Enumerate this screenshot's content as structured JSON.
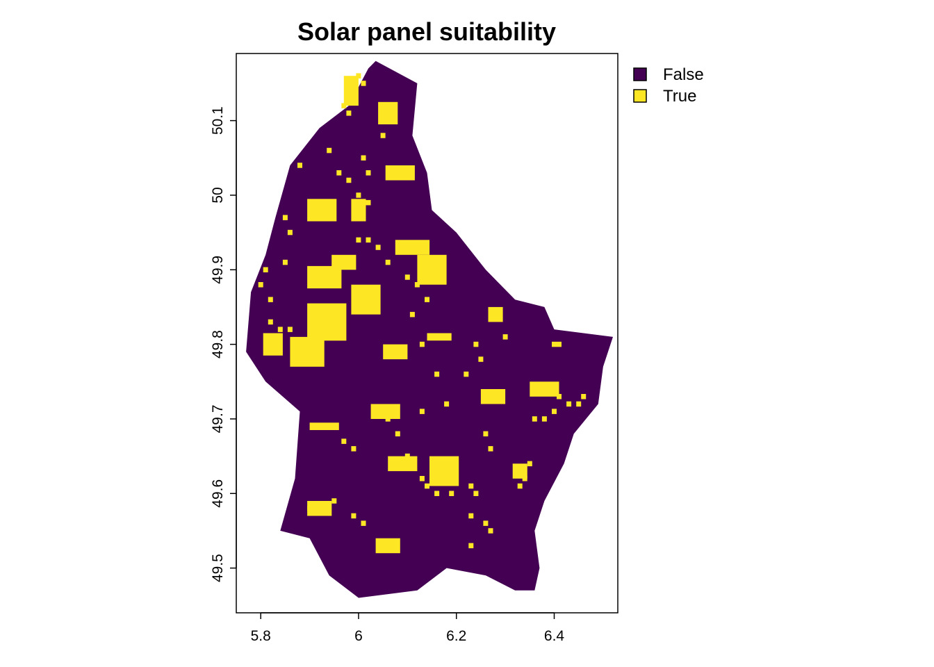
{
  "chart_data": {
    "type": "raster_map",
    "title": "Solar panel suitability",
    "xlabel": "",
    "ylabel": "",
    "xlim": [
      5.75,
      6.53
    ],
    "ylim": [
      49.44,
      50.19
    ],
    "x_ticks": [
      {
        "value": 5.8,
        "label": "5.8"
      },
      {
        "value": 6.0,
        "label": "6"
      },
      {
        "value": 6.2,
        "label": "6.2"
      },
      {
        "value": 6.4,
        "label": "6.4"
      }
    ],
    "y_ticks": [
      {
        "value": 49.5,
        "label": "49.5"
      },
      {
        "value": 49.6,
        "label": "49.6"
      },
      {
        "value": 49.7,
        "label": "49.7"
      },
      {
        "value": 49.8,
        "label": "49.8"
      },
      {
        "value": 49.9,
        "label": "49.9"
      },
      {
        "value": 50.0,
        "label": "50"
      },
      {
        "value": 50.1,
        "label": "50.1"
      }
    ],
    "legend": {
      "position": "top-right",
      "items": [
        {
          "label": "False",
          "color": "#440154"
        },
        {
          "label": "True",
          "color": "#fde725"
        }
      ]
    },
    "outline": [
      [
        6.035,
        50.18
      ],
      [
        6.12,
        50.15
      ],
      [
        6.11,
        50.08
      ],
      [
        6.14,
        50.03
      ],
      [
        6.15,
        49.98
      ],
      [
        6.2,
        49.95
      ],
      [
        6.26,
        49.9
      ],
      [
        6.32,
        49.86
      ],
      [
        6.38,
        49.85
      ],
      [
        6.4,
        49.82
      ],
      [
        6.52,
        49.81
      ],
      [
        6.5,
        49.77
      ],
      [
        6.49,
        49.72
      ],
      [
        6.44,
        49.68
      ],
      [
        6.42,
        49.64
      ],
      [
        6.38,
        49.59
      ],
      [
        6.36,
        49.55
      ],
      [
        6.37,
        49.5
      ],
      [
        6.36,
        49.47
      ],
      [
        6.32,
        49.47
      ],
      [
        6.26,
        49.49
      ],
      [
        6.18,
        49.5
      ],
      [
        6.12,
        49.47
      ],
      [
        6.0,
        49.46
      ],
      [
        5.94,
        49.49
      ],
      [
        5.9,
        49.54
      ],
      [
        5.84,
        49.55
      ],
      [
        5.87,
        49.62
      ],
      [
        5.88,
        49.71
      ],
      [
        5.81,
        49.75
      ],
      [
        5.77,
        49.79
      ],
      [
        5.78,
        49.87
      ],
      [
        5.81,
        49.92
      ],
      [
        5.83,
        49.97
      ],
      [
        5.86,
        50.04
      ],
      [
        5.92,
        50.09
      ],
      [
        5.98,
        50.12
      ],
      [
        6.02,
        50.17
      ]
    ],
    "true_patches": [
      {
        "lon": 5.935,
        "lat": 49.83,
        "w": 0.08,
        "h": 0.05
      },
      {
        "lon": 5.895,
        "lat": 49.79,
        "w": 0.07,
        "h": 0.04
      },
      {
        "lon": 5.825,
        "lat": 49.8,
        "w": 0.04,
        "h": 0.03
      },
      {
        "lon": 5.93,
        "lat": 49.89,
        "w": 0.07,
        "h": 0.03
      },
      {
        "lon": 5.97,
        "lat": 49.91,
        "w": 0.05,
        "h": 0.02
      },
      {
        "lon": 6.015,
        "lat": 49.86,
        "w": 0.06,
        "h": 0.04
      },
      {
        "lon": 5.925,
        "lat": 49.98,
        "w": 0.06,
        "h": 0.03
      },
      {
        "lon": 6.085,
        "lat": 50.03,
        "w": 0.06,
        "h": 0.02
      },
      {
        "lon": 6.11,
        "lat": 49.93,
        "w": 0.07,
        "h": 0.02
      },
      {
        "lon": 6.15,
        "lat": 49.9,
        "w": 0.06,
        "h": 0.04
      },
      {
        "lon": 6.06,
        "lat": 50.11,
        "w": 0.04,
        "h": 0.03
      },
      {
        "lon": 5.985,
        "lat": 50.14,
        "w": 0.03,
        "h": 0.04
      },
      {
        "lon": 6.09,
        "lat": 49.64,
        "w": 0.06,
        "h": 0.02
      },
      {
        "lon": 6.175,
        "lat": 49.63,
        "w": 0.06,
        "h": 0.04
      },
      {
        "lon": 6.055,
        "lat": 49.71,
        "w": 0.06,
        "h": 0.02
      },
      {
        "lon": 5.93,
        "lat": 49.69,
        "w": 0.06,
        "h": 0.01
      },
      {
        "lon": 6.38,
        "lat": 49.74,
        "w": 0.06,
        "h": 0.02
      },
      {
        "lon": 6.275,
        "lat": 49.73,
        "w": 0.05,
        "h": 0.02
      },
      {
        "lon": 6.165,
        "lat": 49.81,
        "w": 0.05,
        "h": 0.01
      },
      {
        "lon": 5.92,
        "lat": 49.58,
        "w": 0.05,
        "h": 0.02
      },
      {
        "lon": 6.06,
        "lat": 49.53,
        "w": 0.05,
        "h": 0.02
      },
      {
        "lon": 6.33,
        "lat": 49.63,
        "w": 0.03,
        "h": 0.02
      },
      {
        "lon": 6.28,
        "lat": 49.84,
        "w": 0.03,
        "h": 0.02
      },
      {
        "lon": 6.075,
        "lat": 49.79,
        "w": 0.05,
        "h": 0.02
      },
      {
        "lon": 6.0,
        "lat": 49.98,
        "w": 0.03,
        "h": 0.03
      }
    ],
    "true_pixels": [
      [
        6.0,
        50.16
      ],
      [
        6.01,
        50.15
      ],
      [
        5.97,
        50.12
      ],
      [
        5.98,
        50.11
      ],
      [
        6.05,
        50.08
      ],
      [
        5.94,
        50.06
      ],
      [
        6.01,
        50.05
      ],
      [
        6.02,
        50.03
      ],
      [
        5.88,
        50.04
      ],
      [
        5.96,
        50.03
      ],
      [
        5.98,
        50.02
      ],
      [
        6.0,
        50.0
      ],
      [
        6.02,
        49.99
      ],
      [
        5.85,
        49.97
      ],
      [
        5.86,
        49.95
      ],
      [
        6.0,
        49.94
      ],
      [
        6.02,
        49.94
      ],
      [
        6.04,
        49.93
      ],
      [
        6.06,
        49.91
      ],
      [
        5.85,
        49.91
      ],
      [
        5.81,
        49.9
      ],
      [
        5.8,
        49.88
      ],
      [
        5.82,
        49.86
      ],
      [
        6.1,
        49.89
      ],
      [
        6.12,
        49.88
      ],
      [
        6.14,
        49.86
      ],
      [
        5.82,
        49.83
      ],
      [
        5.84,
        49.82
      ],
      [
        5.86,
        49.82
      ],
      [
        6.24,
        49.8
      ],
      [
        6.25,
        49.78
      ],
      [
        6.22,
        49.76
      ],
      [
        6.26,
        49.68
      ],
      [
        6.27,
        49.66
      ],
      [
        6.18,
        49.72
      ],
      [
        6.13,
        49.71
      ],
      [
        6.06,
        49.7
      ],
      [
        6.08,
        49.68
      ],
      [
        5.97,
        49.67
      ],
      [
        5.99,
        49.66
      ],
      [
        6.1,
        49.65
      ],
      [
        6.13,
        49.62
      ],
      [
        6.14,
        49.61
      ],
      [
        6.16,
        49.6
      ],
      [
        6.19,
        49.6
      ],
      [
        6.23,
        49.61
      ],
      [
        6.24,
        49.6
      ],
      [
        6.23,
        49.57
      ],
      [
        6.26,
        49.56
      ],
      [
        6.27,
        49.55
      ],
      [
        6.23,
        49.53
      ],
      [
        5.99,
        49.57
      ],
      [
        6.01,
        49.56
      ],
      [
        5.95,
        49.59
      ],
      [
        5.9,
        49.58
      ],
      [
        6.41,
        49.73
      ],
      [
        6.43,
        49.72
      ],
      [
        6.45,
        49.72
      ],
      [
        6.46,
        49.73
      ],
      [
        6.4,
        49.71
      ],
      [
        6.36,
        49.7
      ],
      [
        6.38,
        49.7
      ],
      [
        6.34,
        49.62
      ],
      [
        6.35,
        49.64
      ],
      [
        6.33,
        49.61
      ],
      [
        6.3,
        49.81
      ],
      [
        6.4,
        49.8
      ],
      [
        6.41,
        49.8
      ],
      [
        6.11,
        49.84
      ],
      [
        6.13,
        49.8
      ],
      [
        6.16,
        49.76
      ]
    ]
  }
}
